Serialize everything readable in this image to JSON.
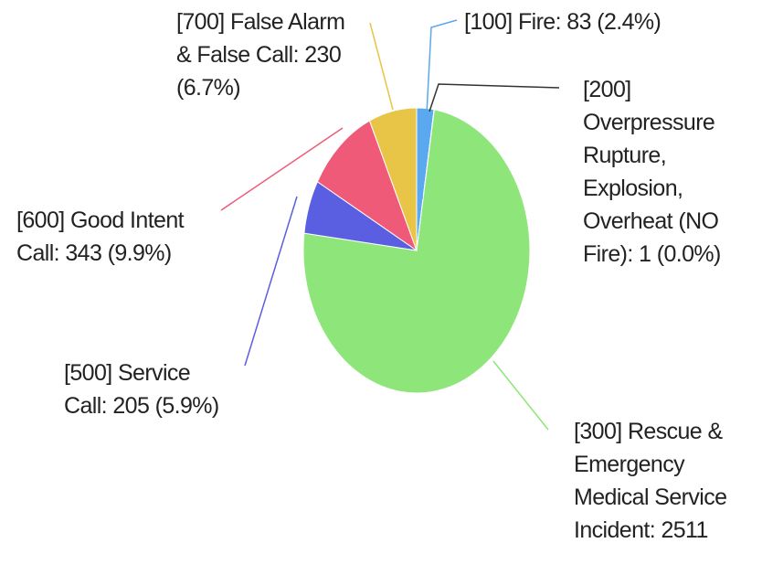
{
  "chart_data": {
    "type": "pie",
    "labels": [
      "[100] Fire: 83 (2.4%)",
      "[200] Overpressure Rupture, Explosion, Overheat (NO Fire): 1 (0.0%)",
      "[300] Rescue & Emergency Medical Service Incident: 2511",
      "[500] Service Call: 205 (5.9%)",
      "[600] Good Intent Call: 343 (9.9%)",
      "[700] False Alarm & False Call: 230 (6.7%)"
    ],
    "values": [
      83,
      1,
      2511,
      205,
      343,
      230
    ],
    "colors": [
      "#5aa9f0",
      "#333333",
      "#8ee67a",
      "#5a5ee0",
      "#ee5a78",
      "#e8c547"
    ]
  }
}
